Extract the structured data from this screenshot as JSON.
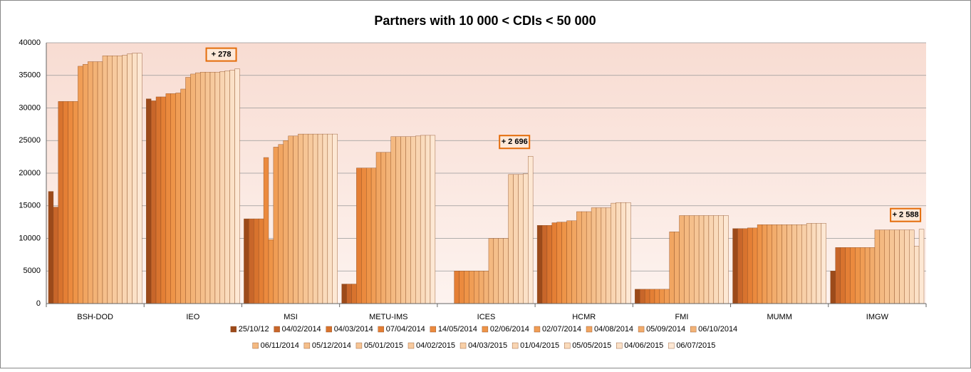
{
  "chart_data": {
    "type": "bar",
    "title": "Partners with 10 000 < CDIs < 50 000",
    "categories": [
      "BSH-DOD",
      "IEO",
      "MSI",
      "METU-IMS",
      "ICES",
      "HCMR",
      "FMI",
      "MUMM",
      "IMGW"
    ],
    "ylim": [
      0,
      40000
    ],
    "yticks": [
      0,
      5000,
      10000,
      15000,
      20000,
      25000,
      30000,
      35000,
      40000
    ],
    "grid": true,
    "annotations": [
      "+ 278",
      "+ 2 696",
      "+ 2 588"
    ],
    "series": [
      {
        "name": "25/10/12",
        "color": "#9c4a1a",
        "values": [
          17200,
          31400,
          13000,
          3000,
          0,
          12000,
          2200,
          11500,
          5000
        ]
      },
      {
        "name": "04/02/2014",
        "color": "#c8662a",
        "values": [
          14800,
          31100,
          13000,
          3000,
          0,
          12000,
          2200,
          11500,
          8600
        ]
      },
      {
        "name": "04/03/2014",
        "color": "#d8732e",
        "values": [
          31000,
          31700,
          13000,
          3000,
          0,
          12000,
          2200,
          11500,
          8600
        ]
      },
      {
        "name": "07/04/2014",
        "color": "#e47f35",
        "values": [
          31000,
          31700,
          13000,
          20800,
          5000,
          12400,
          2200,
          11600,
          8600
        ]
      },
      {
        "name": "14/05/2014",
        "color": "#eb8a3e",
        "values": [
          31000,
          32200,
          22400,
          20800,
          5000,
          12500,
          2200,
          11600,
          8600
        ]
      },
      {
        "name": "02/06/2014",
        "color": "#ee9448",
        "values": [
          31000,
          32200,
          9800,
          20800,
          5000,
          12500,
          2200,
          12100,
          8600
        ]
      },
      {
        "name": "02/07/2014",
        "color": "#f09d55",
        "values": [
          36400,
          32300,
          24000,
          20800,
          5000,
          12700,
          2200,
          12100,
          8600
        ]
      },
      {
        "name": "04/08/2014",
        "color": "#f1a561",
        "values": [
          36700,
          32900,
          24400,
          23200,
          5000,
          12700,
          11000,
          12100,
          8600
        ]
      },
      {
        "name": "05/09/2014",
        "color": "#f2ac6c",
        "values": [
          37100,
          34700,
          25000,
          23200,
          5000,
          14100,
          11000,
          12100,
          8600
        ]
      },
      {
        "name": "06/10/2014",
        "color": "#f3b377",
        "values": [
          37100,
          35200,
          25700,
          23200,
          5000,
          14100,
          13500,
          12100,
          11300
        ]
      },
      {
        "name": "06/11/2014",
        "color": "#f4b981",
        "values": [
          37100,
          35400,
          25700,
          25600,
          10000,
          14100,
          13500,
          12100,
          11300
        ]
      },
      {
        "name": "05/12/2014",
        "color": "#f5bf8b",
        "values": [
          38000,
          35500,
          26000,
          25600,
          10000,
          14700,
          13500,
          12100,
          11300
        ]
      },
      {
        "name": "05/01/2015",
        "color": "#f6c595",
        "values": [
          38000,
          35500,
          26000,
          25600,
          10000,
          14700,
          13500,
          12100,
          11300
        ]
      },
      {
        "name": "04/02/2015",
        "color": "#f7ca9e",
        "values": [
          38000,
          35500,
          26000,
          25600,
          10000,
          14700,
          13500,
          12100,
          11300
        ]
      },
      {
        "name": "04/03/2015",
        "color": "#f8d0a8",
        "values": [
          38000,
          35500,
          26000,
          25600,
          19800,
          14700,
          13500,
          12100,
          11300
        ]
      },
      {
        "name": "01/04/2015",
        "color": "#f9d5b2",
        "values": [
          38100,
          35600,
          26000,
          25700,
          19800,
          15400,
          13500,
          12300,
          11300
        ]
      },
      {
        "name": "05/05/2015",
        "color": "#fadbbc",
        "values": [
          38300,
          35700,
          26000,
          25800,
          19800,
          15500,
          13500,
          12300,
          11300
        ]
      },
      {
        "name": "04/06/2015",
        "color": "#fbe1c7",
        "values": [
          38400,
          35800,
          26000,
          25800,
          19900,
          15500,
          13500,
          12300,
          8800
        ]
      },
      {
        "name": "06/07/2015",
        "color": "#fde8d4",
        "values": [
          38400,
          36000,
          26000,
          25800,
          22600,
          15500,
          13500,
          12300,
          11400
        ]
      }
    ]
  }
}
